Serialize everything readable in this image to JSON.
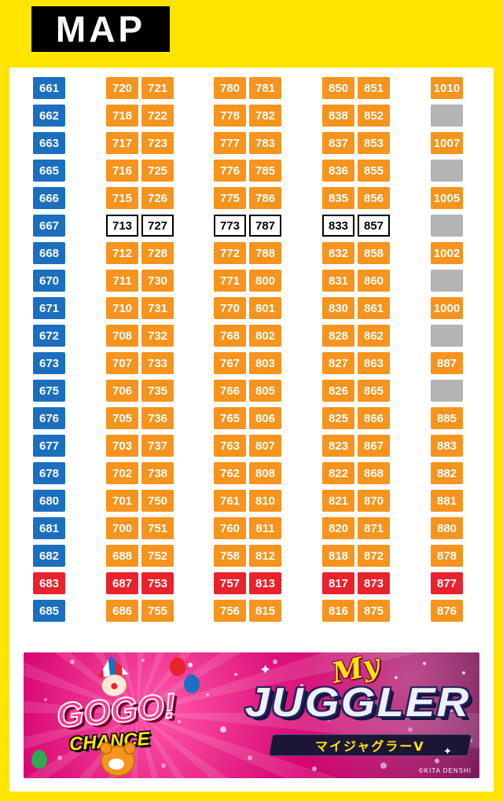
{
  "header": {
    "title": "MAP"
  },
  "colors": {
    "yellow": "#FFE400",
    "blue": "#1C6FBF",
    "orange": "#F6941D",
    "red": "#E8232D",
    "gray": "#B4B4B4",
    "magenta": "#D4006F"
  },
  "icons": {
    "sparkle": "✦"
  },
  "map": {
    "columns": [
      {
        "stacks": [
          [
            {
              "n": "661",
              "c": "blue"
            },
            {
              "n": "662",
              "c": "blue"
            },
            {
              "n": "663",
              "c": "blue"
            },
            {
              "n": "665",
              "c": "blue"
            },
            {
              "n": "666",
              "c": "blue"
            },
            {
              "n": "667",
              "c": "blue"
            },
            {
              "n": "668",
              "c": "blue"
            },
            {
              "n": "670",
              "c": "blue"
            },
            {
              "n": "671",
              "c": "blue"
            },
            {
              "n": "672",
              "c": "blue"
            },
            {
              "n": "673",
              "c": "blue"
            },
            {
              "n": "675",
              "c": "blue"
            },
            {
              "n": "676",
              "c": "blue"
            },
            {
              "n": "677",
              "c": "blue"
            },
            {
              "n": "678",
              "c": "blue"
            },
            {
              "n": "680",
              "c": "blue"
            },
            {
              "n": "681",
              "c": "blue"
            },
            {
              "n": "682",
              "c": "blue"
            },
            {
              "n": "683",
              "c": "red"
            },
            {
              "n": "685",
              "c": "blue"
            }
          ]
        ]
      },
      {
        "stacks": [
          [
            {
              "n": "720",
              "c": "orange"
            },
            {
              "n": "718",
              "c": "orange"
            },
            {
              "n": "717",
              "c": "orange"
            },
            {
              "n": "716",
              "c": "orange"
            },
            {
              "n": "715",
              "c": "orange"
            },
            {
              "n": "713",
              "c": "white"
            },
            {
              "n": "712",
              "c": "orange"
            },
            {
              "n": "711",
              "c": "orange"
            },
            {
              "n": "710",
              "c": "orange"
            },
            {
              "n": "708",
              "c": "orange"
            },
            {
              "n": "707",
              "c": "orange"
            },
            {
              "n": "706",
              "c": "orange"
            },
            {
              "n": "705",
              "c": "orange"
            },
            {
              "n": "703",
              "c": "orange"
            },
            {
              "n": "702",
              "c": "orange"
            },
            {
              "n": "701",
              "c": "orange"
            },
            {
              "n": "700",
              "c": "orange"
            },
            {
              "n": "688",
              "c": "orange"
            },
            {
              "n": "687",
              "c": "red"
            },
            {
              "n": "686",
              "c": "orange"
            }
          ],
          [
            {
              "n": "721",
              "c": "orange"
            },
            {
              "n": "722",
              "c": "orange"
            },
            {
              "n": "723",
              "c": "orange"
            },
            {
              "n": "725",
              "c": "orange"
            },
            {
              "n": "726",
              "c": "orange"
            },
            {
              "n": "727",
              "c": "white"
            },
            {
              "n": "728",
              "c": "orange"
            },
            {
              "n": "730",
              "c": "orange"
            },
            {
              "n": "731",
              "c": "orange"
            },
            {
              "n": "732",
              "c": "orange"
            },
            {
              "n": "733",
              "c": "orange"
            },
            {
              "n": "735",
              "c": "orange"
            },
            {
              "n": "736",
              "c": "orange"
            },
            {
              "n": "737",
              "c": "orange"
            },
            {
              "n": "738",
              "c": "orange"
            },
            {
              "n": "750",
              "c": "orange"
            },
            {
              "n": "751",
              "c": "orange"
            },
            {
              "n": "752",
              "c": "orange"
            },
            {
              "n": "753",
              "c": "red"
            },
            {
              "n": "755",
              "c": "orange"
            }
          ]
        ]
      },
      {
        "stacks": [
          [
            {
              "n": "780",
              "c": "orange"
            },
            {
              "n": "778",
              "c": "orange"
            },
            {
              "n": "777",
              "c": "orange"
            },
            {
              "n": "776",
              "c": "orange"
            },
            {
              "n": "775",
              "c": "orange"
            },
            {
              "n": "773",
              "c": "white"
            },
            {
              "n": "772",
              "c": "orange"
            },
            {
              "n": "771",
              "c": "orange"
            },
            {
              "n": "770",
              "c": "orange"
            },
            {
              "n": "768",
              "c": "orange"
            },
            {
              "n": "767",
              "c": "orange"
            },
            {
              "n": "766",
              "c": "orange"
            },
            {
              "n": "765",
              "c": "orange"
            },
            {
              "n": "763",
              "c": "orange"
            },
            {
              "n": "762",
              "c": "orange"
            },
            {
              "n": "761",
              "c": "orange"
            },
            {
              "n": "760",
              "c": "orange"
            },
            {
              "n": "758",
              "c": "orange"
            },
            {
              "n": "757",
              "c": "red"
            },
            {
              "n": "756",
              "c": "orange"
            }
          ],
          [
            {
              "n": "781",
              "c": "orange"
            },
            {
              "n": "782",
              "c": "orange"
            },
            {
              "n": "783",
              "c": "orange"
            },
            {
              "n": "785",
              "c": "orange"
            },
            {
              "n": "786",
              "c": "orange"
            },
            {
              "n": "787",
              "c": "white"
            },
            {
              "n": "788",
              "c": "orange"
            },
            {
              "n": "800",
              "c": "orange"
            },
            {
              "n": "801",
              "c": "orange"
            },
            {
              "n": "802",
              "c": "orange"
            },
            {
              "n": "803",
              "c": "orange"
            },
            {
              "n": "805",
              "c": "orange"
            },
            {
              "n": "806",
              "c": "orange"
            },
            {
              "n": "807",
              "c": "orange"
            },
            {
              "n": "808",
              "c": "orange"
            },
            {
              "n": "810",
              "c": "orange"
            },
            {
              "n": "811",
              "c": "orange"
            },
            {
              "n": "812",
              "c": "orange"
            },
            {
              "n": "813",
              "c": "red"
            },
            {
              "n": "815",
              "c": "orange"
            }
          ]
        ]
      },
      {
        "stacks": [
          [
            {
              "n": "850",
              "c": "orange"
            },
            {
              "n": "838",
              "c": "orange"
            },
            {
              "n": "837",
              "c": "orange"
            },
            {
              "n": "836",
              "c": "orange"
            },
            {
              "n": "835",
              "c": "orange"
            },
            {
              "n": "833",
              "c": "white"
            },
            {
              "n": "832",
              "c": "orange"
            },
            {
              "n": "831",
              "c": "orange"
            },
            {
              "n": "830",
              "c": "orange"
            },
            {
              "n": "828",
              "c": "orange"
            },
            {
              "n": "827",
              "c": "orange"
            },
            {
              "n": "826",
              "c": "orange"
            },
            {
              "n": "825",
              "c": "orange"
            },
            {
              "n": "823",
              "c": "orange"
            },
            {
              "n": "822",
              "c": "orange"
            },
            {
              "n": "821",
              "c": "orange"
            },
            {
              "n": "820",
              "c": "orange"
            },
            {
              "n": "818",
              "c": "orange"
            },
            {
              "n": "817",
              "c": "red"
            },
            {
              "n": "816",
              "c": "orange"
            }
          ],
          [
            {
              "n": "851",
              "c": "orange"
            },
            {
              "n": "852",
              "c": "orange"
            },
            {
              "n": "853",
              "c": "orange"
            },
            {
              "n": "855",
              "c": "orange"
            },
            {
              "n": "856",
              "c": "orange"
            },
            {
              "n": "857",
              "c": "white"
            },
            {
              "n": "858",
              "c": "orange"
            },
            {
              "n": "860",
              "c": "orange"
            },
            {
              "n": "861",
              "c": "orange"
            },
            {
              "n": "862",
              "c": "orange"
            },
            {
              "n": "863",
              "c": "orange"
            },
            {
              "n": "865",
              "c": "orange"
            },
            {
              "n": "866",
              "c": "orange"
            },
            {
              "n": "867",
              "c": "orange"
            },
            {
              "n": "868",
              "c": "orange"
            },
            {
              "n": "870",
              "c": "orange"
            },
            {
              "n": "871",
              "c": "orange"
            },
            {
              "n": "872",
              "c": "orange"
            },
            {
              "n": "873",
              "c": "red"
            },
            {
              "n": "875",
              "c": "orange"
            }
          ]
        ]
      },
      {
        "stacks": [
          [
            {
              "n": "1010",
              "c": "orange"
            },
            {
              "n": "",
              "c": "gray"
            },
            {
              "n": "1007",
              "c": "orange"
            },
            {
              "n": "",
              "c": "gray"
            },
            {
              "n": "1005",
              "c": "orange"
            },
            {
              "n": "",
              "c": "gray"
            },
            {
              "n": "1002",
              "c": "orange"
            },
            {
              "n": "",
              "c": "gray"
            },
            {
              "n": "1000",
              "c": "orange"
            },
            {
              "n": "",
              "c": "gray"
            },
            {
              "n": "887",
              "c": "orange"
            },
            {
              "n": "",
              "c": "gray"
            },
            {
              "n": "885",
              "c": "orange"
            },
            {
              "n": "883",
              "c": "orange"
            },
            {
              "n": "882",
              "c": "orange"
            },
            {
              "n": "881",
              "c": "orange"
            },
            {
              "n": "880",
              "c": "orange"
            },
            {
              "n": "878",
              "c": "orange"
            },
            {
              "n": "877",
              "c": "red"
            },
            {
              "n": "876",
              "c": "orange"
            }
          ]
        ]
      }
    ]
  },
  "banner": {
    "gogo": "GOGO!",
    "chance": "CHANCE",
    "my": "My",
    "title": "JUGGLER",
    "subtitle": "マイジャグラーV",
    "copyright": "©KITA DENSHI"
  }
}
